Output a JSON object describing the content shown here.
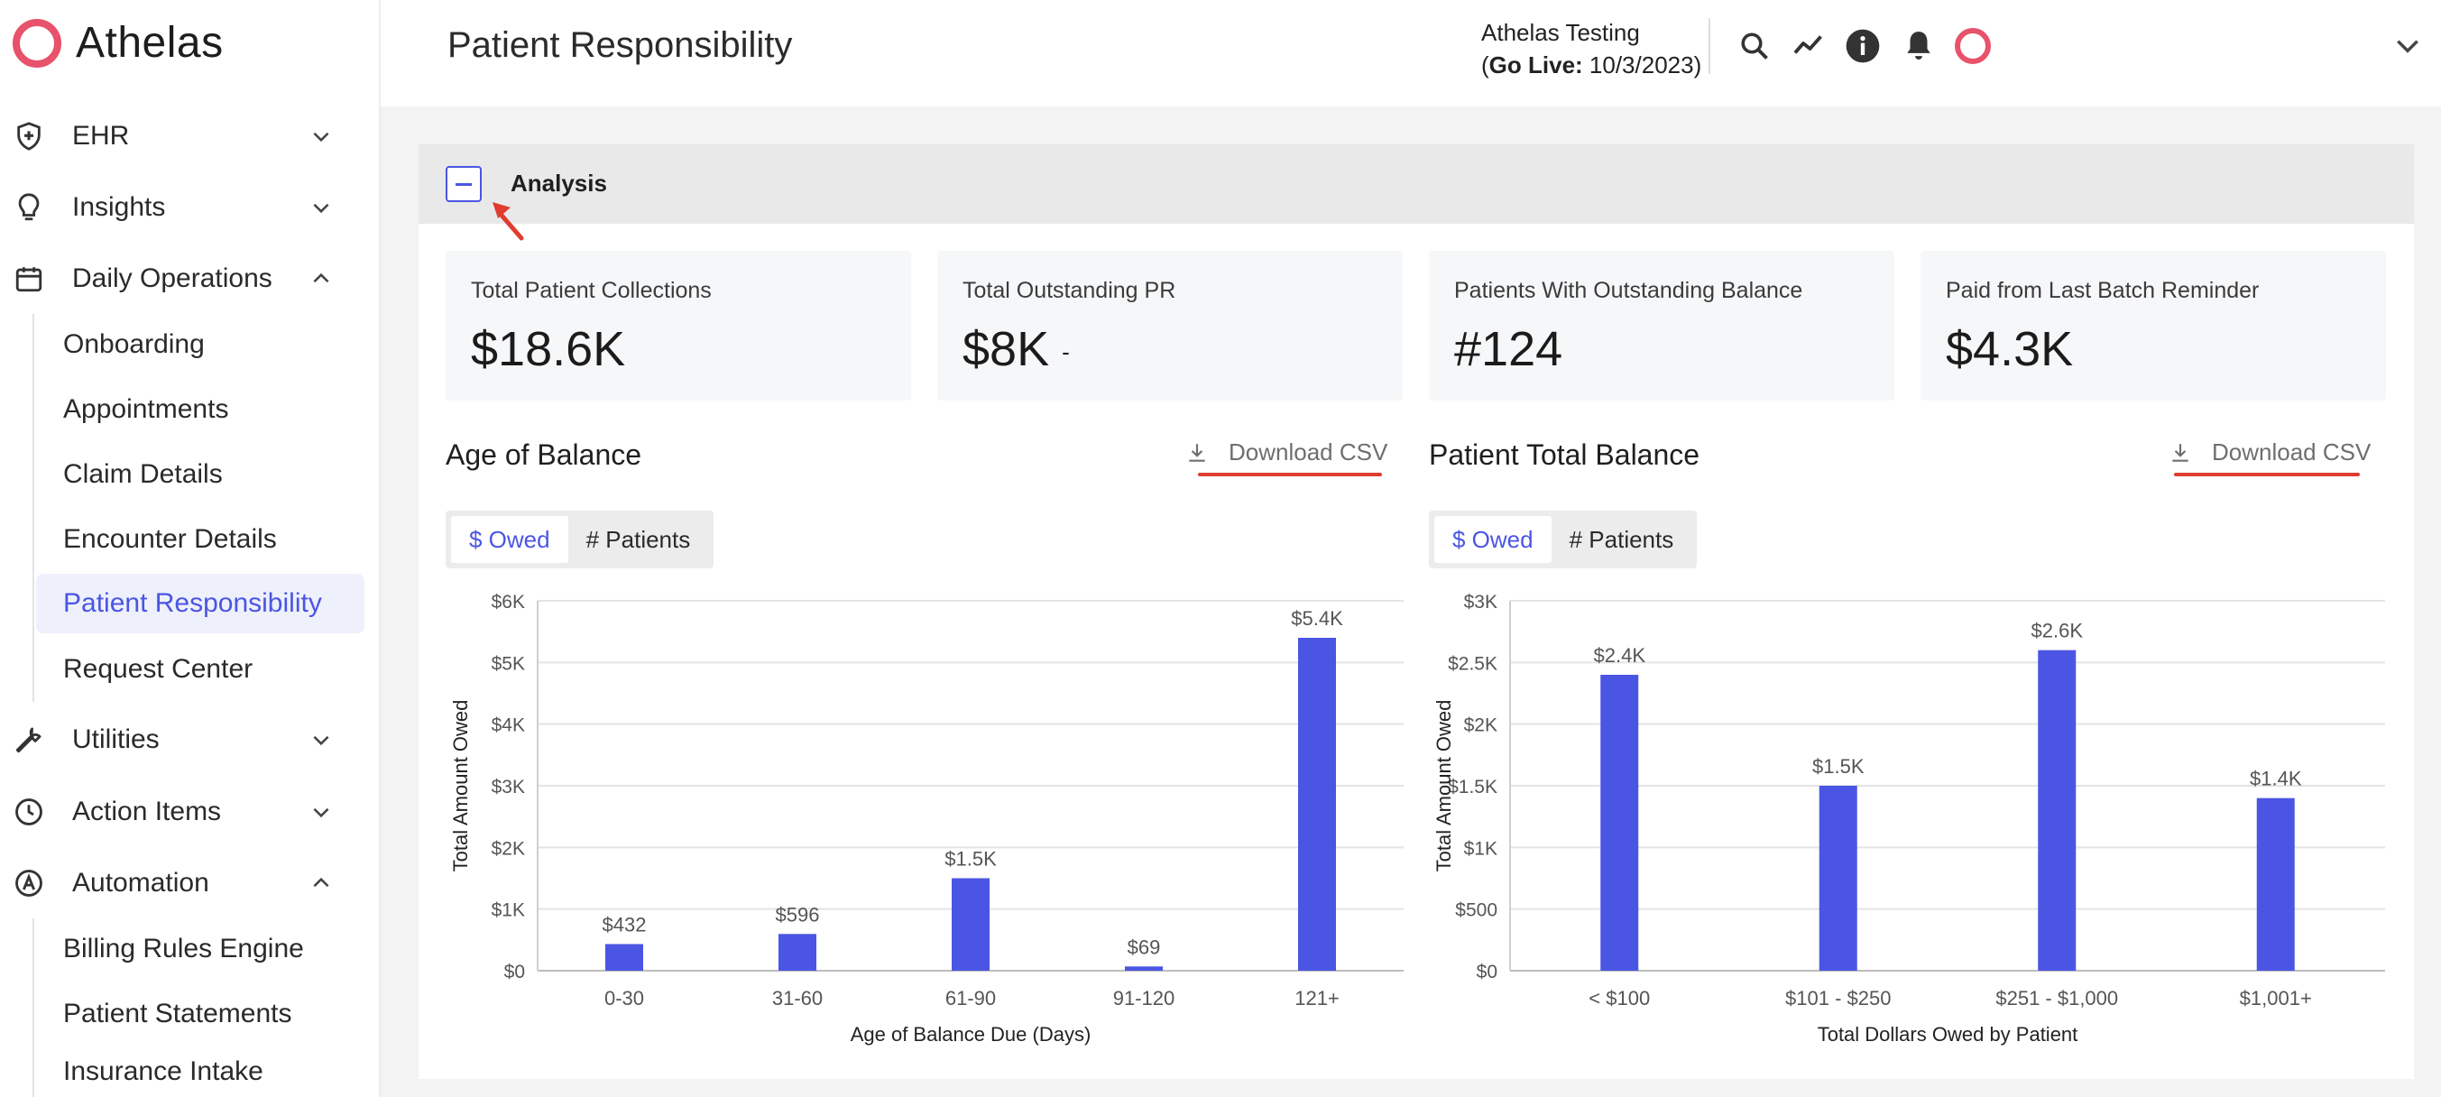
{
  "brand": {
    "name": "Athelas"
  },
  "sidebar": {
    "items": [
      {
        "label": "EHR",
        "icon": "shield-plus-icon",
        "expanded": false
      },
      {
        "label": "Insights",
        "icon": "lightbulb-icon",
        "expanded": false
      },
      {
        "label": "Daily Operations",
        "icon": "calendar-icon",
        "expanded": true
      },
      {
        "label": "Utilities",
        "icon": "wrench-icon",
        "expanded": false
      },
      {
        "label": "Action Items",
        "icon": "clock-icon",
        "expanded": false
      },
      {
        "label": "Automation",
        "icon": "automation-icon",
        "expanded": true
      }
    ],
    "daily_operations_sub": [
      "Onboarding",
      "Appointments",
      "Claim Details",
      "Encounter Details",
      "Patient Responsibility",
      "Request Center"
    ],
    "automation_sub": [
      "Billing Rules Engine",
      "Patient Statements",
      "Insurance Intake"
    ],
    "active": "Patient Responsibility"
  },
  "header": {
    "title": "Patient Responsibility",
    "org_name": "Athelas Testing",
    "go_live_prefix": "(",
    "go_live_label": "Go Live:",
    "go_live_date": " 10/3/2023)",
    "icons": [
      "search-icon",
      "trend-icon",
      "info-icon",
      "bell-icon",
      "user-avatar-icon",
      "chevron-down-icon"
    ]
  },
  "panel": {
    "title": "Analysis",
    "kpis": [
      {
        "label": "Total Patient Collections",
        "value": "$18.6K",
        "suffix": ""
      },
      {
        "label": "Total Outstanding PR",
        "value": "$8K",
        "suffix": "-"
      },
      {
        "label": "Patients With Outstanding Balance",
        "value": "#124",
        "suffix": ""
      },
      {
        "label": "Paid from Last Batch Reminder",
        "value": "$4.3K",
        "suffix": ""
      }
    ],
    "download_label": "Download CSV",
    "toggle": {
      "owed": "$ Owed",
      "patients": "# Patients",
      "selected": "owed"
    }
  },
  "accent_color": "#4b55e3",
  "brand_color": "#e8526a",
  "annotation_color": "#e03c30",
  "chart_data": [
    {
      "title": "Age of Balance",
      "type": "bar",
      "categories": [
        "0-30",
        "31-60",
        "61-90",
        "91-120",
        "121+"
      ],
      "values": [
        432,
        596,
        1500,
        69,
        5400
      ],
      "data_labels": [
        "$432",
        "$596",
        "$1.5K",
        "$69",
        "$5.4K"
      ],
      "xlabel": "Age of Balance Due (Days)",
      "ylabel": "Total Amount Owed",
      "ylim": [
        0,
        6000
      ],
      "yticks": [
        0,
        1000,
        2000,
        3000,
        4000,
        5000,
        6000
      ],
      "ytick_labels": [
        "$0",
        "$1K",
        "$2K",
        "$3K",
        "$4K",
        "$5K",
        "$6K"
      ],
      "grid": true
    },
    {
      "title": "Patient Total Balance",
      "type": "bar",
      "categories": [
        "< $100",
        "$101 - $250",
        "$251 - $1,000",
        "$1,001+"
      ],
      "values": [
        2400,
        1500,
        2600,
        1400
      ],
      "data_labels": [
        "$2.4K",
        "$1.5K",
        "$2.6K",
        "$1.4K"
      ],
      "xlabel": "Total Dollars Owed by Patient",
      "ylabel": "Total Amount Owed",
      "ylim": [
        0,
        3000
      ],
      "yticks": [
        0,
        500,
        1000,
        1500,
        2000,
        2500,
        3000
      ],
      "ytick_labels": [
        "$0",
        "$500",
        "$1K",
        "$1.5K",
        "$2K",
        "$2.5K",
        "$3K"
      ],
      "grid": true
    }
  ]
}
